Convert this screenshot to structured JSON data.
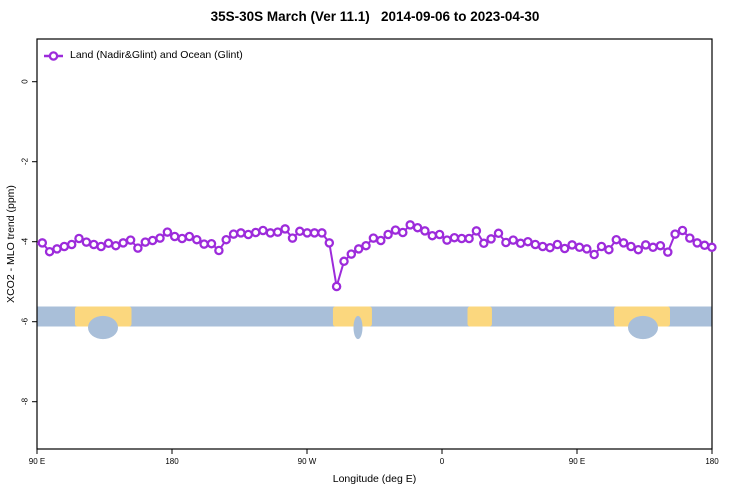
{
  "page": {
    "background_color": "#FFFFFF",
    "frame_color": "#000000"
  },
  "chart_data": {
    "type": "line",
    "title": "35S-30S March (Ver 11.1)   2014-09-06 to 2023-04-30",
    "xlabel": "Longitude (deg E)",
    "ylabel": "XCO2 - MLO trend (ppm)",
    "legend": [
      "Land (Nadir&Glint) and Ocean (Glint)"
    ],
    "legend_position": "top-left-inside",
    "line_color": "#9D2BDB",
    "marker": "open-circle",
    "marker_fill": "#FFFFFF",
    "grid": "off",
    "x_axis": {
      "description": "longitude, starting at 90E and wrapping eastward 450 degrees",
      "tick_positions_deg": [
        0,
        90,
        180,
        270,
        360,
        450
      ],
      "tick_labels": [
        "90 E",
        "180",
        "90 W",
        "0",
        "90 E",
        "180"
      ],
      "range_deg": [
        0,
        450
      ]
    },
    "y_axis": {
      "tick_values": [
        0,
        -2,
        -4,
        -6,
        -8
      ],
      "tick_labels": [
        "0",
        "-2",
        "-4",
        "-6",
        "-8"
      ],
      "range": [
        -9.2,
        1.05
      ]
    },
    "series": [
      {
        "name": "Land (Nadir&Glint) and Ocean (Glint)",
        "x_start_deg": 3.5,
        "x_step_deg": 4.906,
        "edge_left_value": -4.05,
        "edge_right_value": -4.13,
        "values": [
          -4.03,
          -4.25,
          -4.18,
          -4.12,
          -4.07,
          -3.92,
          -4.01,
          -4.07,
          -4.12,
          -4.04,
          -4.1,
          -4.03,
          -3.96,
          -4.16,
          -4.01,
          -3.97,
          -3.91,
          -3.76,
          -3.87,
          -3.92,
          -3.87,
          -3.95,
          -4.06,
          -4.05,
          -4.22,
          -3.95,
          -3.81,
          -3.78,
          -3.82,
          -3.77,
          -3.72,
          -3.78,
          -3.76,
          -3.68,
          -3.91,
          -3.74,
          -3.78,
          -3.78,
          -3.78,
          -4.03,
          -5.12,
          -4.49,
          -4.31,
          -4.18,
          -4.1,
          -3.91,
          -3.97,
          -3.82,
          -3.71,
          -3.77,
          -3.58,
          -3.65,
          -3.73,
          -3.85,
          -3.82,
          -3.96,
          -3.9,
          -3.92,
          -3.92,
          -3.73,
          -4.04,
          -3.93,
          -3.79,
          -4.02,
          -3.96,
          -4.04,
          -4.0,
          -4.07,
          -4.12,
          -4.15,
          -4.07,
          -4.17,
          -4.08,
          -4.14,
          -4.18,
          -4.32,
          -4.12,
          -4.2,
          -3.95,
          -4.03,
          -4.12,
          -4.2,
          -4.08,
          -4.14,
          -4.1,
          -4.26,
          -3.81,
          -3.72,
          -3.91,
          -4.03,
          -4.09,
          -4.14
        ]
      }
    ],
    "map_strip": {
      "description": "35S-30S latitude band land/ocean reference strip",
      "value_range_ppm": [
        -5.62,
        -6.12
      ],
      "ocean_color": "#A9BFD9",
      "land_color": "#FBD77E",
      "land_patches": [
        {
          "name": "australia",
          "from_deg": 25.3,
          "to_deg": 63.0,
          "coast_notch_deg": [
            34.0,
            54.0
          ]
        },
        {
          "name": "south-america",
          "from_deg": 197.3,
          "to_deg": 223.3,
          "coast_notch_deg": [
            211.0,
            217.0
          ]
        },
        {
          "name": "south-africa",
          "from_deg": 287.0,
          "to_deg": 303.3
        },
        {
          "name": "australia-wrap",
          "from_deg": 384.7,
          "to_deg": 422.0,
          "coast_notch_deg": [
            394.0,
            414.0
          ]
        }
      ]
    }
  }
}
